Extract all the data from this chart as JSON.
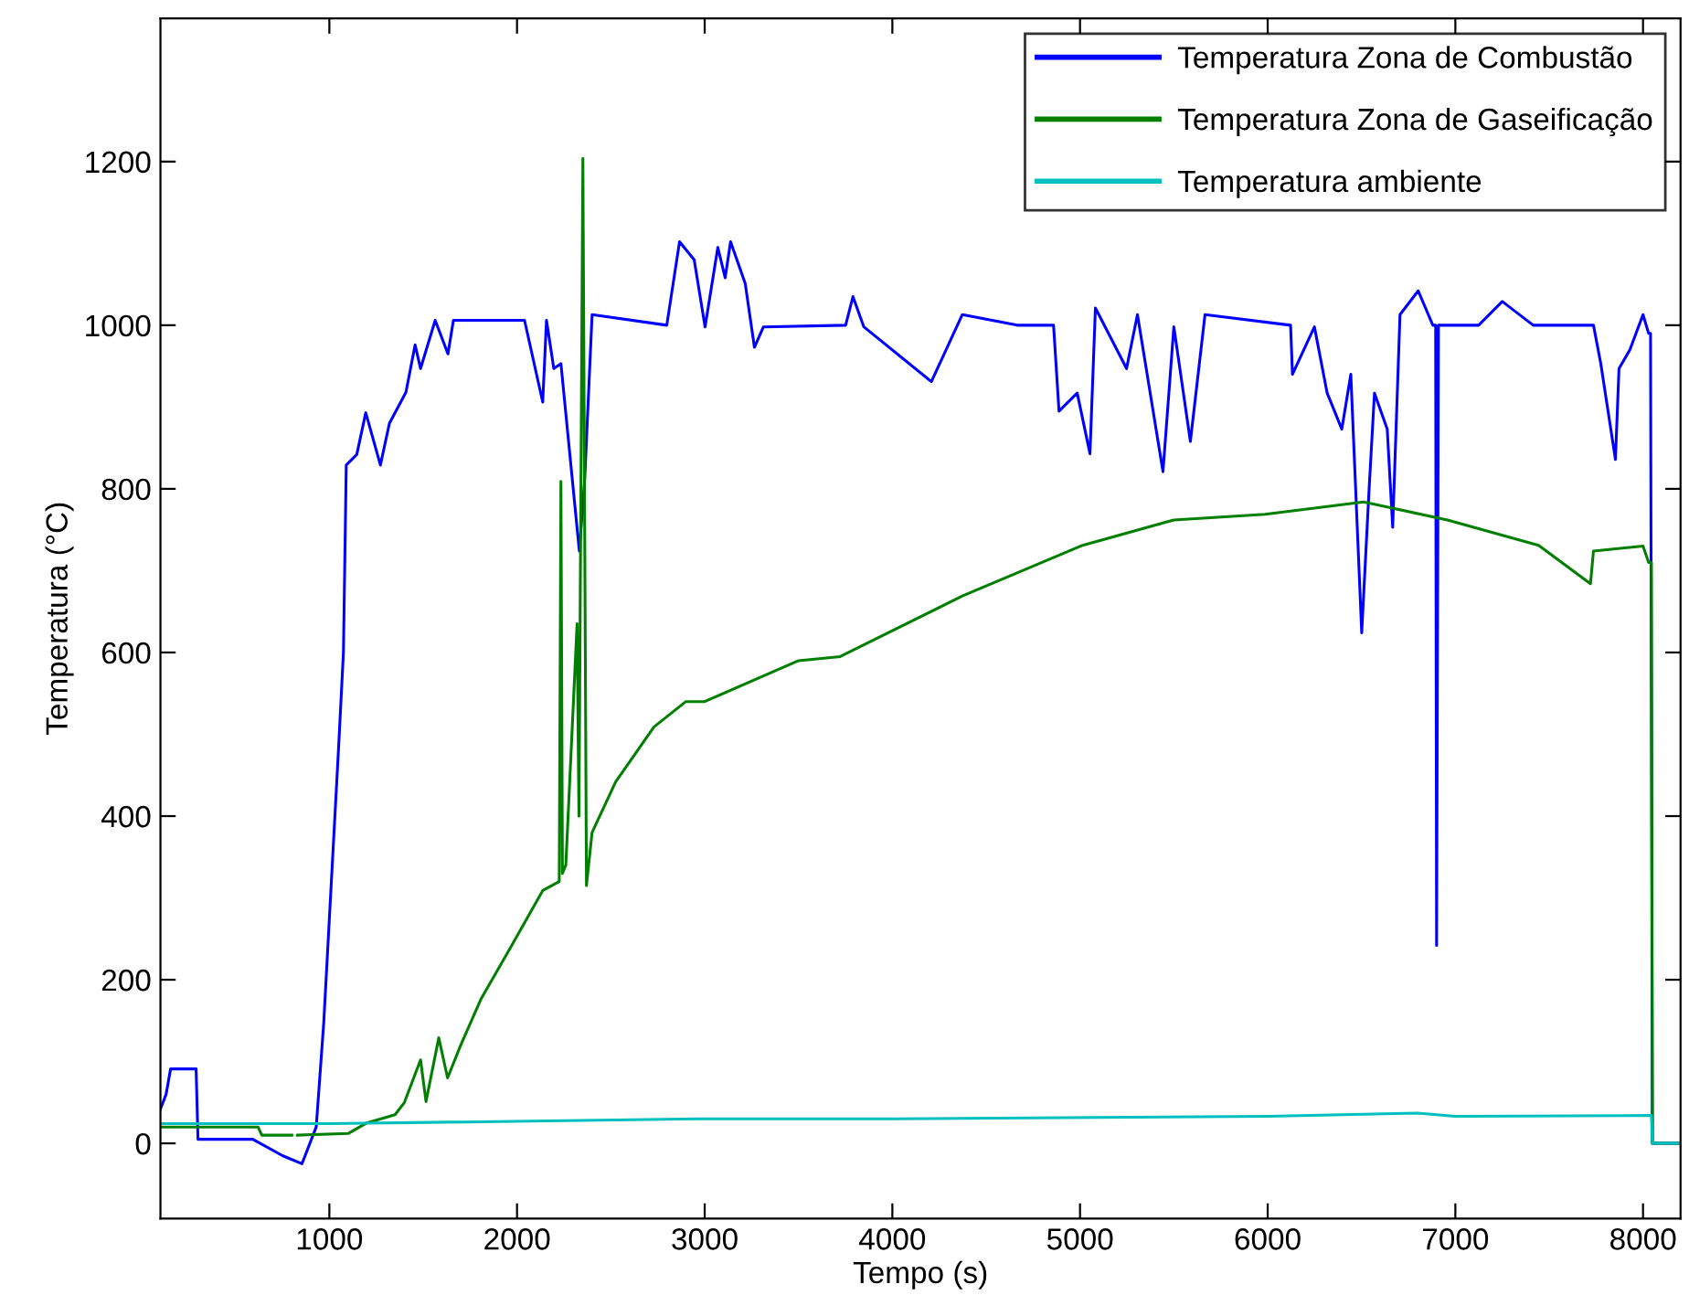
{
  "chart_data": {
    "type": "line",
    "xlabel": "Tempo (s)",
    "ylabel": "Temperatura (°C)",
    "xlim": [
      100,
      8200
    ],
    "ylim": [
      -92,
      1375
    ],
    "xticks": [
      1000,
      2000,
      3000,
      4000,
      5000,
      6000,
      7000,
      8000
    ],
    "yticks": [
      0,
      200,
      400,
      600,
      800,
      1000,
      1200
    ],
    "grid": false,
    "legend": "top right",
    "marker": "none",
    "line_style": "solid",
    "series": [
      {
        "name": "Temperatura Zona de Combustão",
        "color": "#0000ff",
        "x": [
          100,
          130,
          154,
          290,
          300,
          592,
          750,
          854,
          930,
          970,
          1050,
          1075,
          1090,
          1146,
          1194,
          1272,
          1320,
          1408,
          1457,
          1486,
          1564,
          1632,
          1661,
          2040,
          2137,
          2157,
          2196,
          2234,
          2332,
          2361,
          2400,
          2798,
          2866,
          2944,
          3002,
          3070,
          3109,
          3138,
          3216,
          3265,
          3313,
          3751,
          3790,
          3848,
          4208,
          4373,
          4665,
          4859,
          4888,
          4985,
          5053,
          5082,
          5248,
          5306,
          5442,
          5500,
          5588,
          5666,
          6122,
          6132,
          6249,
          6317,
          6395,
          6443,
          6501,
          6540,
          6569,
          6637,
          6666,
          6705,
          6802,
          6880,
          6895,
          6900,
          6910,
          7124,
          7250,
          7415,
          7736,
          7775,
          7853,
          7872,
          7930,
          8000,
          8030,
          8040,
          8050,
          8200
        ],
        "values": [
          42,
          60,
          91,
          91,
          5,
          5,
          -15,
          -25,
          20,
          147,
          487,
          600,
          829,
          842,
          893,
          829,
          880,
          918,
          976,
          947,
          1006,
          965,
          1006,
          1006,
          906,
          1006,
          947,
          953,
          724,
          813,
          1013,
          1000,
          1102,
          1080,
          998,
          1095,
          1058,
          1102,
          1051,
          973,
          998,
          1000,
          1035,
          998,
          931,
          1013,
          1000,
          1000,
          895,
          917,
          843,
          1021,
          947,
          1013,
          821,
          998,
          858,
          1013,
          1000,
          940,
          998,
          917,
          873,
          940,
          624,
          798,
          917,
          873,
          753,
          1013,
          1042,
          1000,
          1000,
          242,
          1000,
          1000,
          1029,
          1000,
          1000,
          953,
          836,
          947,
          970,
          1013,
          990,
          990,
          0,
          0
        ]
      },
      {
        "name": "Temperatura Zona de Gaseificação",
        "color": "#007f00",
        "x": [
          100,
          620,
          640,
          800,
          810,
          820,
          830,
          1100,
          1200,
          1350,
          1400,
          1486,
          1515,
          1583,
          1630,
          1700,
          1807,
          1972,
          2137,
          2225,
          2234,
          2242,
          2260,
          2320,
          2330,
          2351,
          2370,
          2400,
          2526,
          2730,
          2900,
          3000,
          3500,
          3722,
          4373,
          5014,
          5500,
          5986,
          6511,
          6958,
          7444,
          7720,
          7736,
          8000,
          8030,
          8045,
          8050,
          8200
        ],
        "values": [
          20,
          20,
          10,
          10,
          null,
          null,
          10,
          12,
          25,
          35,
          50,
          102,
          51,
          129,
          80,
          120,
          176,
          242,
          309,
          320,
          809,
          330,
          340,
          635,
          400,
          1204,
          315,
          380,
          442,
          509,
          540,
          540,
          590,
          595,
          669,
          731,
          762,
          769,
          784,
          762,
          731,
          684,
          724,
          730,
          710,
          710,
          0,
          0
        ]
      },
      {
        "name": "Temperatura ambiente",
        "color": "#00bfbf",
        "x": [
          100,
          1000,
          3000,
          4000,
          6000,
          6800,
          7000,
          8045,
          8050,
          8200
        ],
        "values": [
          24,
          24,
          30,
          30,
          33,
          37,
          33,
          34,
          0,
          0
        ]
      }
    ]
  }
}
